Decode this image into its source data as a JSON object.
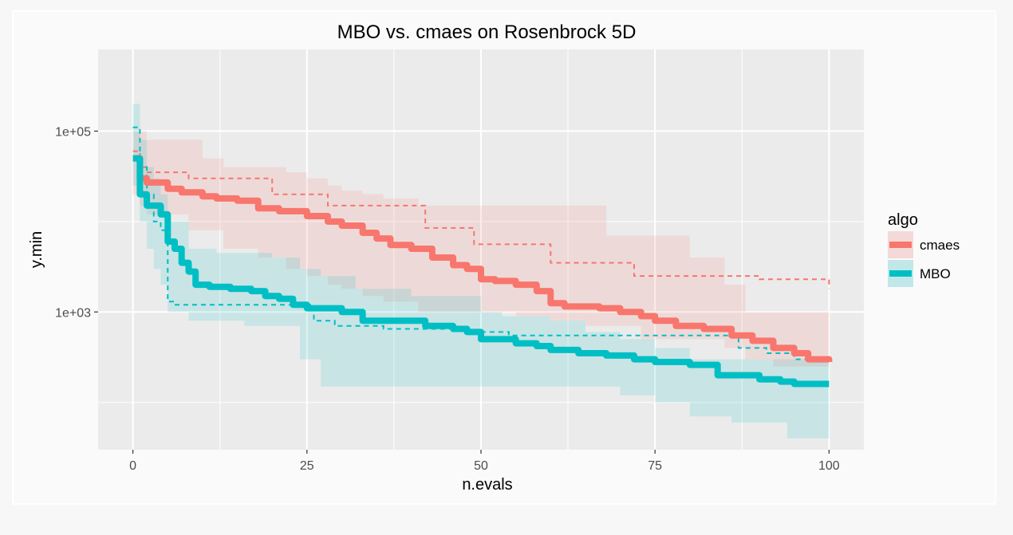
{
  "chart_data": {
    "type": "line",
    "title": "MBO vs. cmaes on Rosenbrock 5D",
    "xlabel": "n.evals",
    "ylabel": "y.min",
    "x_scale": "linear",
    "y_scale": "log10",
    "xlim": [
      -5,
      105
    ],
    "ylim": [
      30,
      800000
    ],
    "x_ticks": [
      0,
      25,
      50,
      75,
      100
    ],
    "x_tick_labels": [
      "0",
      "25",
      "50",
      "75",
      "100"
    ],
    "y_ticks": [
      1000,
      100000
    ],
    "y_tick_labels": [
      "1e+03",
      "1e+05"
    ],
    "grid": true,
    "legend": {
      "title": "algo",
      "position": "right",
      "entries": [
        "cmaes",
        "MBO"
      ]
    },
    "colors": {
      "cmaes": "#F8766D",
      "MBO": "#00BFC4",
      "panel": "#ebebeb",
      "grid": "#ffffff"
    },
    "series": [
      {
        "name": "cmaes",
        "median_line": [
          [
            0,
            50000
          ],
          [
            1,
            30000
          ],
          [
            2,
            27000
          ],
          [
            5,
            23000
          ],
          [
            7,
            21000
          ],
          [
            10,
            19000
          ],
          [
            12,
            18000
          ],
          [
            15,
            17000
          ],
          [
            18,
            14000
          ],
          [
            21,
            13000
          ],
          [
            25,
            11500
          ],
          [
            28,
            10000
          ],
          [
            30,
            9000
          ],
          [
            33,
            7500
          ],
          [
            35,
            6500
          ],
          [
            37,
            5500
          ],
          [
            40,
            5000
          ],
          [
            43,
            4000
          ],
          [
            46,
            3300
          ],
          [
            48,
            3000
          ],
          [
            50,
            2300
          ],
          [
            52,
            2200
          ],
          [
            55,
            2000
          ],
          [
            58,
            1700
          ],
          [
            60,
            1250
          ],
          [
            62,
            1150
          ],
          [
            67,
            1100
          ],
          [
            70,
            1000
          ],
          [
            73,
            900
          ],
          [
            75,
            800
          ],
          [
            78,
            700
          ],
          [
            82,
            650
          ],
          [
            86,
            550
          ],
          [
            89,
            480
          ],
          [
            92,
            400
          ],
          [
            95,
            350
          ],
          [
            97,
            300
          ],
          [
            100,
            280
          ]
        ],
        "best_line": [
          [
            0,
            60000
          ],
          [
            1,
            40000
          ],
          [
            2,
            35000
          ],
          [
            7,
            35000
          ],
          [
            8,
            30000
          ],
          [
            13,
            30000
          ],
          [
            19,
            30000
          ],
          [
            20,
            20000
          ],
          [
            27,
            20000
          ],
          [
            28,
            15000
          ],
          [
            41,
            15000
          ],
          [
            42,
            8500
          ],
          [
            48,
            8500
          ],
          [
            49,
            5600
          ],
          [
            58,
            5600
          ],
          [
            60,
            3500
          ],
          [
            71,
            3500
          ],
          [
            72,
            2500
          ],
          [
            89,
            2500
          ],
          [
            90,
            2300
          ],
          [
            100,
            2300
          ],
          [
            100,
            1800
          ]
        ],
        "band": [
          [
            0,
            100000,
            20000
          ],
          [
            1,
            100000,
            15000
          ],
          [
            2,
            80000,
            12000
          ],
          [
            5,
            80000,
            12000
          ],
          [
            8,
            80000,
            8000
          ],
          [
            10,
            50000,
            8000
          ],
          [
            13,
            40000,
            5000
          ],
          [
            18,
            40000,
            4000
          ],
          [
            22,
            35000,
            3000
          ],
          [
            25,
            30000,
            2500
          ],
          [
            28,
            25000,
            2000
          ],
          [
            30,
            22000,
            1800
          ],
          [
            33,
            20000,
            1500
          ],
          [
            36,
            18000,
            1300
          ],
          [
            41,
            15000,
            1000
          ],
          [
            46,
            15000,
            1000
          ],
          [
            50,
            15000,
            1000
          ],
          [
            55,
            15000,
            900
          ],
          [
            60,
            15000,
            800
          ],
          [
            65,
            15000,
            700
          ],
          [
            68,
            7000,
            700
          ],
          [
            73,
            7000,
            500
          ],
          [
            80,
            4000,
            500
          ],
          [
            85,
            2000,
            400
          ],
          [
            88,
            1000,
            300
          ],
          [
            92,
            1000,
            250
          ],
          [
            96,
            1000,
            250
          ],
          [
            100,
            1000,
            250
          ]
        ]
      },
      {
        "name": "MBO",
        "median_line": [
          [
            0,
            50000
          ],
          [
            1,
            20000
          ],
          [
            2,
            15000
          ],
          [
            3,
            15000
          ],
          [
            4,
            12000
          ],
          [
            5,
            6000
          ],
          [
            6,
            5000
          ],
          [
            7,
            3500
          ],
          [
            8,
            2800
          ],
          [
            9,
            2000
          ],
          [
            11,
            1900
          ],
          [
            14,
            1800
          ],
          [
            17,
            1700
          ],
          [
            19,
            1500
          ],
          [
            21,
            1400
          ],
          [
            23,
            1200
          ],
          [
            25,
            1100
          ],
          [
            26,
            1100
          ],
          [
            30,
            1000
          ],
          [
            33,
            800
          ],
          [
            37,
            800
          ],
          [
            40,
            800
          ],
          [
            42,
            700
          ],
          [
            46,
            650
          ],
          [
            48,
            600
          ],
          [
            50,
            500
          ],
          [
            53,
            500
          ],
          [
            55,
            450
          ],
          [
            58,
            420
          ],
          [
            60,
            380
          ],
          [
            64,
            350
          ],
          [
            68,
            330
          ],
          [
            72,
            300
          ],
          [
            75,
            280
          ],
          [
            78,
            280
          ],
          [
            80,
            260
          ],
          [
            84,
            200
          ],
          [
            86,
            200
          ],
          [
            90,
            180
          ],
          [
            93,
            170
          ],
          [
            95,
            160
          ],
          [
            100,
            160
          ]
        ],
        "best_line": [
          [
            0,
            110000
          ],
          [
            1,
            40000
          ],
          [
            2,
            20000
          ],
          [
            3,
            10000
          ],
          [
            4,
            8000
          ],
          [
            5,
            1300
          ],
          [
            6,
            1200
          ],
          [
            25,
            1200
          ],
          [
            26,
            800
          ],
          [
            27,
            800
          ],
          [
            29,
            700
          ],
          [
            35,
            700
          ],
          [
            36,
            650
          ],
          [
            47,
            650
          ],
          [
            48,
            600
          ],
          [
            53,
            600
          ],
          [
            54,
            550
          ],
          [
            86,
            550
          ],
          [
            87,
            400
          ],
          [
            90,
            400
          ],
          [
            91,
            350
          ],
          [
            94,
            350
          ],
          [
            95,
            300
          ],
          [
            100,
            300
          ]
        ],
        "band": [
          [
            0,
            200000,
            25000
          ],
          [
            1,
            80000,
            10000
          ],
          [
            2,
            40000,
            5000
          ],
          [
            3,
            30000,
            3000
          ],
          [
            4,
            20000,
            2000
          ],
          [
            5,
            10000,
            1000
          ],
          [
            8,
            5000,
            800
          ],
          [
            12,
            4500,
            800
          ],
          [
            16,
            4500,
            700
          ],
          [
            20,
            4000,
            700
          ],
          [
            24,
            3000,
            300
          ],
          [
            27,
            2500,
            150
          ],
          [
            32,
            1800,
            150
          ],
          [
            40,
            1500,
            150
          ],
          [
            47,
            1500,
            150
          ],
          [
            50,
            1000,
            150
          ],
          [
            53,
            900,
            150
          ],
          [
            60,
            800,
            150
          ],
          [
            65,
            600,
            150
          ],
          [
            70,
            500,
            120
          ],
          [
            75,
            400,
            100
          ],
          [
            80,
            300,
            70
          ],
          [
            86,
            300,
            60
          ],
          [
            90,
            300,
            60
          ],
          [
            94,
            300,
            40
          ],
          [
            100,
            300,
            40
          ]
        ]
      }
    ]
  }
}
